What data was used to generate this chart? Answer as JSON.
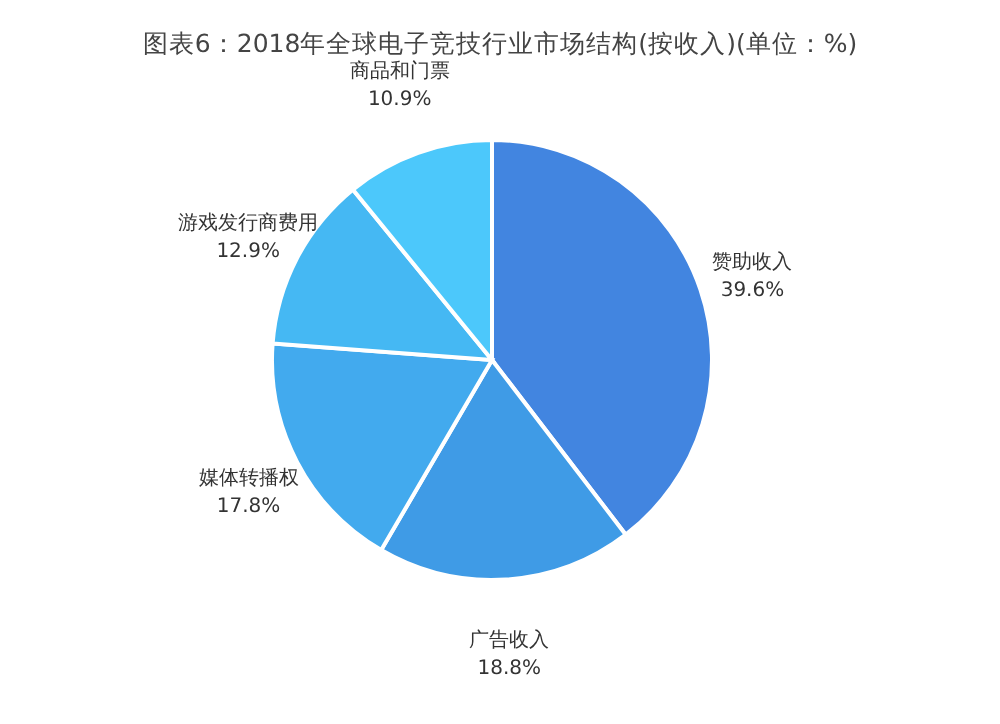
{
  "chart_data": {
    "type": "pie",
    "title": "图表6：2018年全球电子竞技行业市场结构(按收入)(单位：%)",
    "categories": [
      "赞助收入",
      "广告收入",
      "媒体转播权",
      "游戏发行商费用",
      "商品和门票"
    ],
    "values": [
      39.6,
      18.8,
      17.8,
      12.9,
      10.9
    ],
    "colors": [
      "#4285e0",
      "#3f9be6",
      "#42aaee",
      "#45b8f3",
      "#4cc8fb"
    ],
    "value_labels": [
      "39.6%",
      "18.8%",
      "17.8%",
      "12.9%",
      "10.9%"
    ]
  }
}
